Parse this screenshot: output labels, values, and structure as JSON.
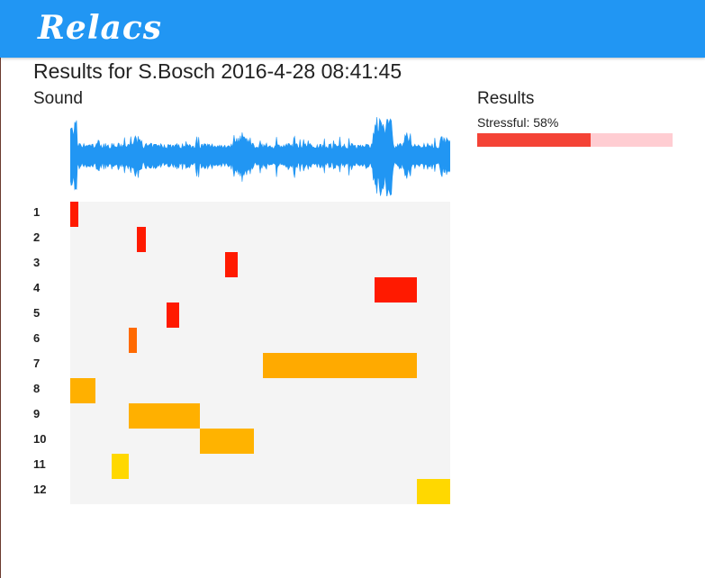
{
  "app": {
    "brand": "Relacs"
  },
  "header": {
    "title": "Results for S.Bosch 2016-4-28 08:41:45"
  },
  "sound": {
    "title": "Sound",
    "waveform_color": "#2196f3"
  },
  "timeline": {
    "rows": [
      "1",
      "2",
      "3",
      "4",
      "5",
      "6",
      "7",
      "8",
      "9",
      "10",
      "11",
      "12"
    ],
    "background": "#f4f4f4",
    "segments": [
      {
        "row": 1,
        "start": 0.0,
        "end": 0.021,
        "color": "#ff1a00"
      },
      {
        "row": 2,
        "start": 0.175,
        "end": 0.199,
        "color": "#ff1a00"
      },
      {
        "row": 3,
        "start": 0.408,
        "end": 0.441,
        "color": "#ff1a00"
      },
      {
        "row": 4,
        "start": 0.801,
        "end": 0.912,
        "color": "#ff1a00"
      },
      {
        "row": 5,
        "start": 0.254,
        "end": 0.287,
        "color": "#ff1a00"
      },
      {
        "row": 6,
        "start": 0.154,
        "end": 0.175,
        "color": "#ff6a00"
      },
      {
        "row": 7,
        "start": 0.507,
        "end": 0.912,
        "color": "#ffaa00"
      },
      {
        "row": 8,
        "start": 0.0,
        "end": 0.066,
        "color": "#ffb000"
      },
      {
        "row": 9,
        "start": 0.154,
        "end": 0.341,
        "color": "#ffb000"
      },
      {
        "row": 10,
        "start": 0.341,
        "end": 0.483,
        "color": "#ffb300"
      },
      {
        "row": 11,
        "start": 0.109,
        "end": 0.154,
        "color": "#ffd800"
      },
      {
        "row": 12,
        "start": 0.912,
        "end": 1.0,
        "color": "#ffd800"
      }
    ]
  },
  "results": {
    "title": "Results",
    "items": [
      {
        "label": "Stressful: 58%",
        "value": 0.58,
        "fill_color": "#f44336",
        "track_color": "#ffcdd2"
      }
    ]
  }
}
